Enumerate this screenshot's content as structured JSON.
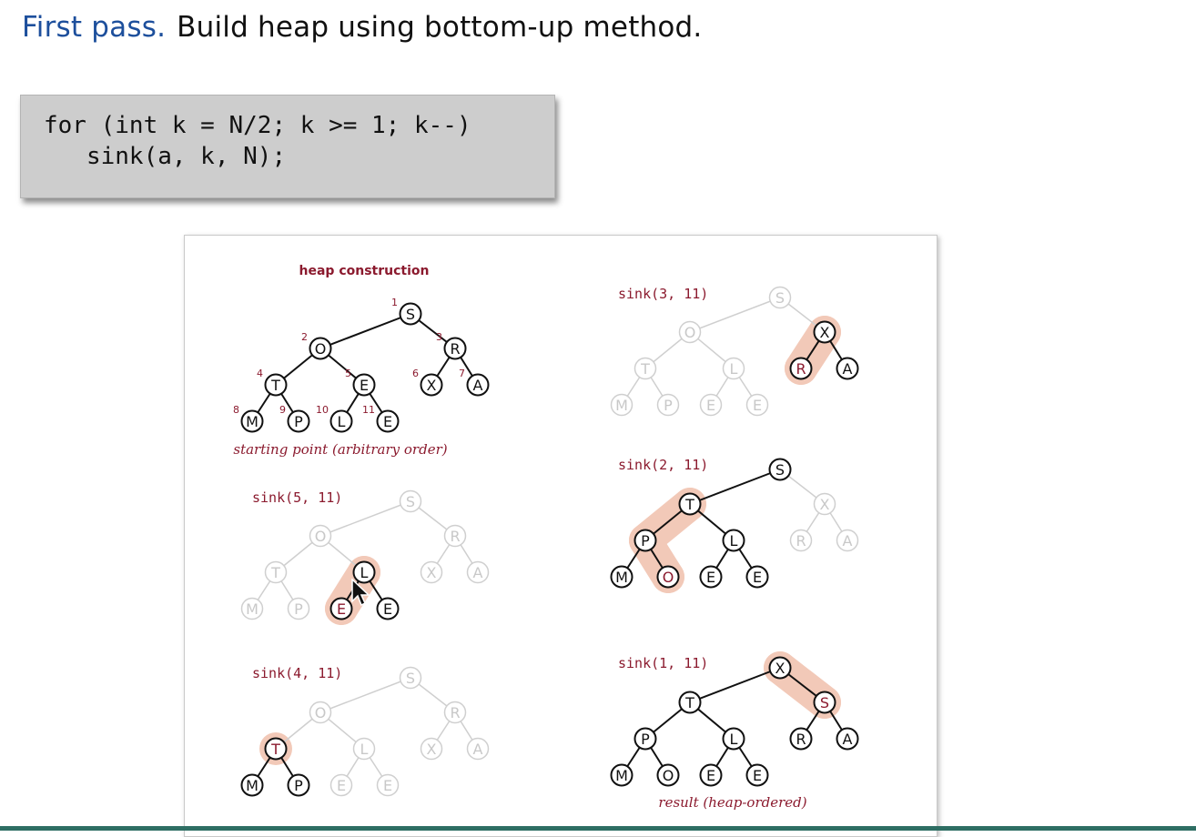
{
  "header": {
    "lead": "First pass.",
    "rest": "Build heap using bottom-up method."
  },
  "code": {
    "line1": "for (int k = N/2; k >= 1; k--)",
    "line2": "   sink(a, k, N);"
  },
  "figure": {
    "title": "heap construction",
    "colors": {
      "accent": "#8b1a2e",
      "highlight": "#f2c9b8",
      "active": "#111111",
      "faded": "#cfcfcf"
    },
    "panels": [
      {
        "id": "start",
        "label": "",
        "caption": "starting point (arbitrary order)",
        "keys": [
          "S",
          "O",
          "R",
          "T",
          "E",
          "X",
          "A",
          "M",
          "P",
          "L",
          "E"
        ],
        "active": [
          1,
          2,
          3,
          4,
          5,
          6,
          7,
          8,
          9,
          10,
          11
        ],
        "red": [],
        "highlight": [],
        "show_indices": true
      },
      {
        "id": "sink5",
        "label": "sink(5, 11)",
        "caption": "",
        "keys": [
          "S",
          "O",
          "R",
          "T",
          "L",
          "X",
          "A",
          "M",
          "P",
          "E",
          "E"
        ],
        "active": [
          5,
          10,
          11
        ],
        "red": [
          10
        ],
        "highlight": [
          5,
          10
        ],
        "show_indices": false
      },
      {
        "id": "sink4",
        "label": "sink(4, 11)",
        "caption": "",
        "keys": [
          "S",
          "O",
          "R",
          "T",
          "L",
          "X",
          "A",
          "M",
          "P",
          "E",
          "E"
        ],
        "active": [
          4,
          8,
          9
        ],
        "red": [
          4
        ],
        "highlight": [
          4
        ],
        "show_indices": false
      },
      {
        "id": "sink3",
        "label": "sink(3, 11)",
        "caption": "",
        "keys": [
          "S",
          "O",
          "X",
          "T",
          "L",
          "R",
          "A",
          "M",
          "P",
          "E",
          "E"
        ],
        "active": [
          3,
          6,
          7
        ],
        "red": [
          6
        ],
        "highlight": [
          3,
          6
        ],
        "show_indices": false
      },
      {
        "id": "sink2",
        "label": "sink(2, 11)",
        "caption": "",
        "keys": [
          "S",
          "T",
          "X",
          "P",
          "L",
          "R",
          "A",
          "M",
          "O",
          "E",
          "E"
        ],
        "active": [
          1,
          2,
          4,
          5,
          8,
          9,
          10,
          11
        ],
        "red": [
          9
        ],
        "highlight": [
          2,
          4,
          9
        ],
        "show_indices": false
      },
      {
        "id": "sink1",
        "label": "sink(1, 11)",
        "caption": "result (heap-ordered)",
        "keys": [
          "X",
          "T",
          "S",
          "P",
          "L",
          "R",
          "A",
          "M",
          "O",
          "E",
          "E"
        ],
        "active": [
          1,
          2,
          3,
          4,
          5,
          6,
          7,
          8,
          9,
          10,
          11
        ],
        "red": [
          3
        ],
        "highlight": [
          1,
          3
        ],
        "show_indices": false
      }
    ]
  }
}
